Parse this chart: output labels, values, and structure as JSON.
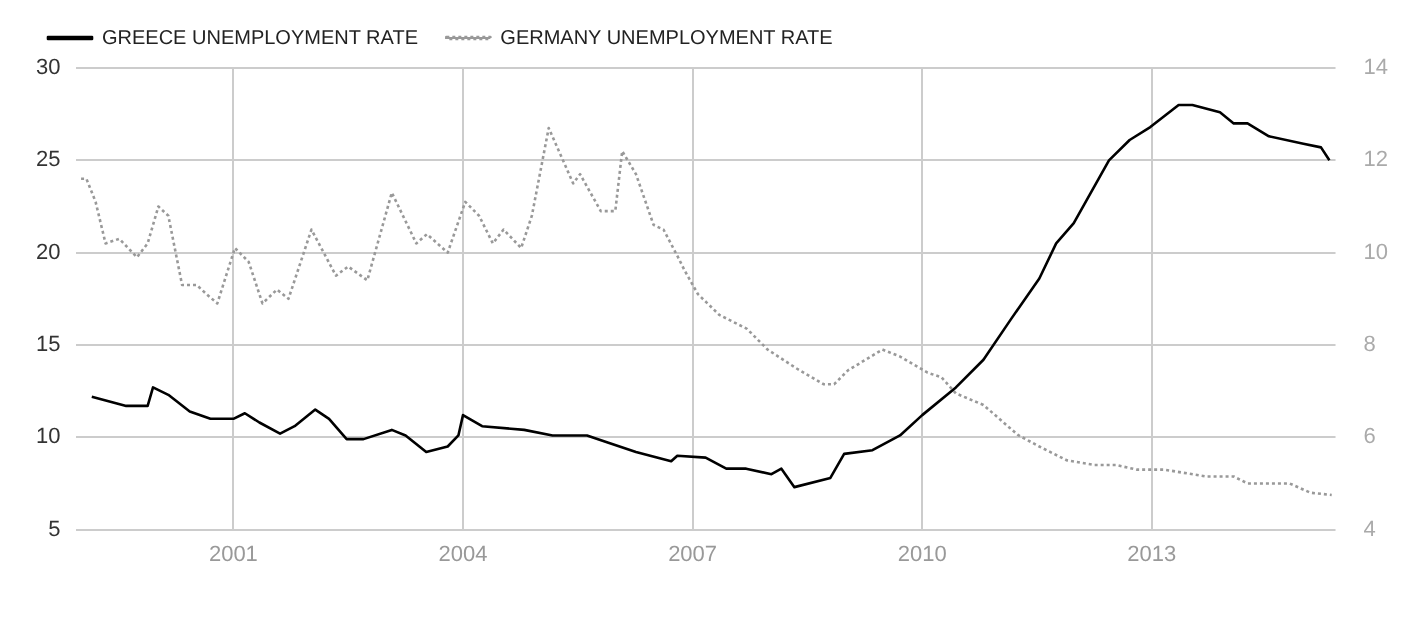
{
  "chart_data": {
    "type": "line",
    "legend": "top left",
    "grid": true,
    "marker": "none",
    "xlim": [
      1998.95,
      2015.4
    ],
    "xticks": [
      2001,
      2004,
      2007,
      2010,
      2013
    ],
    "ylim": [
      5,
      30
    ],
    "yticks": [
      5,
      10,
      15,
      20,
      25,
      30
    ],
    "y2lim": [
      4,
      14
    ],
    "y2ticks": [
      4,
      6,
      8,
      10,
      12,
      14
    ],
    "series": [
      {
        "name": "GREECE UNEMPLOYMENT RATE",
        "color": "#000000",
        "line_style": "solid",
        "x": [
          1999.15,
          1999.6,
          1999.88,
          1999.95,
          2000.15,
          2000.43,
          2000.7,
          2001,
          2001.15,
          2001.34,
          2001.61,
          2001.8,
          2002.07,
          2002.25,
          2002.48,
          2002.7,
          2003.07,
          2003.25,
          2003.52,
          2003.8,
          2003.94,
          2004,
          2004.25,
          2004.8,
          2005.17,
          2005.62,
          2005.9,
          2006.26,
          2006.72,
          2006.8,
          2007.17,
          2007.44,
          2007.7,
          2008.03,
          2008.16,
          2008.33,
          2008.8,
          2008.98,
          2009.35,
          2009.71,
          2010,
          2010.44,
          2010.8,
          2011.16,
          2011.53,
          2011.75,
          2011.98,
          2012.44,
          2012.71,
          2012.98,
          2013.35,
          2013.53,
          2013.89,
          2014.07,
          2014.25,
          2014.53,
          2014.98,
          2015.21,
          2015.32
        ],
        "values": [
          12.2,
          11.7,
          11.7,
          12.7,
          12.3,
          11.4,
          11.0,
          11.0,
          11.3,
          10.8,
          10.2,
          10.6,
          11.5,
          11.0,
          9.9,
          9.9,
          10.4,
          10.1,
          9.2,
          9.5,
          10.1,
          11.2,
          10.6,
          10.4,
          10.1,
          10.1,
          9.7,
          9.2,
          8.7,
          9.0,
          8.9,
          8.3,
          8.3,
          8.0,
          8.3,
          7.3,
          7.8,
          9.1,
          9.3,
          10.1,
          11.2,
          12.7,
          14.2,
          16.4,
          18.6,
          20.5,
          21.6,
          25.0,
          26.1,
          26.8,
          28.0,
          28.0,
          27.6,
          27.0,
          27.0,
          26.3,
          25.9,
          25.7,
          25.0
        ]
      },
      {
        "name": "GERMANY UNEMPLOYMENT RATE",
        "color": "#999999",
        "line_style": "dotted",
        "axis": "y2",
        "x": [
          1999.01,
          1999.08,
          1999.2,
          1999.33,
          1999.51,
          1999.74,
          1999.88,
          2000.02,
          2000.15,
          2000.33,
          2000.52,
          2000.65,
          2000.79,
          2001.02,
          2001.2,
          2001.38,
          2001.57,
          2001.72,
          2002.02,
          2002.34,
          2002.5,
          2002.75,
          2003.07,
          2003.39,
          2003.53,
          2003.8,
          2004.03,
          2004.21,
          2004.39,
          2004.53,
          2004.76,
          2004.9,
          2005.12,
          2005.44,
          2005.53,
          2005.8,
          2005.99,
          2006.08,
          2006.26,
          2006.49,
          2006.62,
          2006.81,
          2006.9,
          2007.07,
          2007.35,
          2007.71,
          2007.98,
          2008.35,
          2008.71,
          2008.85,
          2009.03,
          2009.48,
          2009.71,
          2010.07,
          2010.25,
          2010.44,
          2010.8,
          2011.25,
          2011.53,
          2011.89,
          2012.25,
          2012.53,
          2012.8,
          2013.16,
          2013.71,
          2014.07,
          2014.25,
          2014.8,
          2015.07,
          2015.35
        ],
        "values": [
          11.6,
          11.6,
          11.1,
          10.2,
          10.3,
          9.9,
          10.2,
          11.0,
          10.8,
          9.3,
          9.3,
          9.1,
          8.9,
          10.1,
          9.8,
          8.9,
          9.2,
          9.0,
          10.5,
          9.5,
          9.7,
          9.4,
          11.3,
          10.2,
          10.4,
          10.0,
          11.1,
          10.8,
          10.2,
          10.5,
          10.1,
          10.8,
          12.7,
          11.5,
          11.7,
          10.9,
          10.9,
          12.2,
          11.7,
          10.6,
          10.5,
          9.9,
          9.6,
          9.1,
          8.65,
          8.35,
          7.9,
          7.5,
          7.15,
          7.15,
          7.45,
          7.9,
          7.75,
          7.4,
          7.3,
          6.95,
          6.7,
          6.05,
          5.8,
          5.5,
          5.4,
          5.4,
          5.3,
          5.3,
          5.15,
          5.15,
          5.0,
          5.0,
          4.8,
          4.75
        ]
      }
    ]
  }
}
